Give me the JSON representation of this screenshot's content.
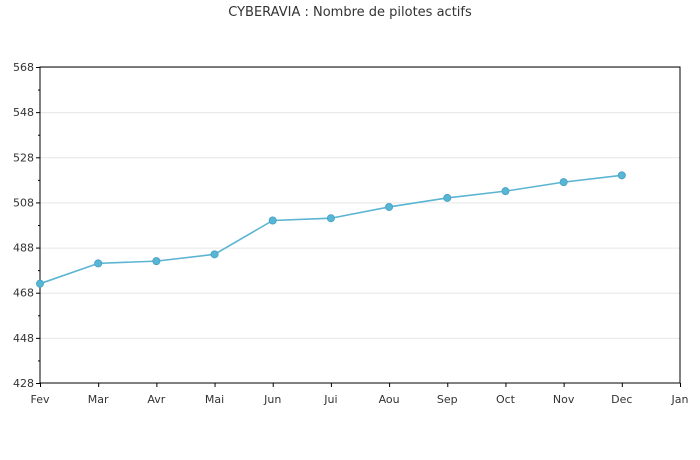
{
  "chart_data": {
    "type": "line",
    "title": "CYBERAVIA : Nombre de pilotes actifs",
    "xlabel": "",
    "ylabel": "",
    "categories": [
      "Fev",
      "Mar",
      "Avr",
      "Mai",
      "Jun",
      "Jui",
      "Aou",
      "Sep",
      "Oct",
      "Nov",
      "Dec",
      "Jan"
    ],
    "series": [
      {
        "values": [
          472,
          481,
          482,
          485,
          500,
          501,
          506,
          510,
          513,
          517,
          520,
          null
        ]
      }
    ],
    "ylim": [
      428,
      568
    ],
    "yticks": [
      428,
      448,
      468,
      488,
      508,
      528,
      548,
      568
    ],
    "grid": "horizontal",
    "legend": "none",
    "colors": {
      "line": "#5ab4d2",
      "marker": "#55b6d6",
      "grid": "#e6e6e6",
      "axis": "#000000"
    }
  }
}
